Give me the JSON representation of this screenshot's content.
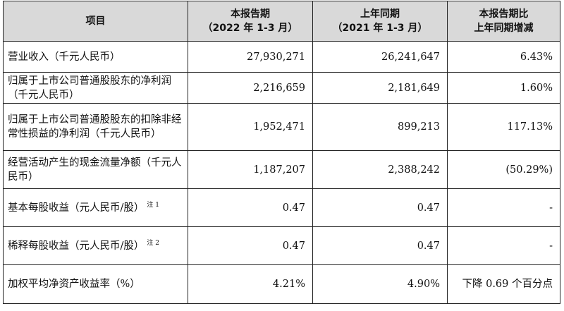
{
  "table": {
    "headers": [
      {
        "line1": "项目",
        "line2": ""
      },
      {
        "line1": "本报告期",
        "line2": "（2022 年 1-3 月）"
      },
      {
        "line1": "上年同期",
        "line2": "（2021 年 1-3 月）"
      },
      {
        "line1": "本报告期比",
        "line2": "上年同期增减"
      }
    ],
    "rows": [
      {
        "label": "营业收入（千元人民币）",
        "note": "",
        "current": "27,930,271",
        "prior": "26,241,647",
        "change": "6.43%"
      },
      {
        "label": "归属于上市公司普通股股东的净利润（千元人民币）",
        "note": "",
        "current": "2,216,659",
        "prior": "2,181,649",
        "change": "1.60%"
      },
      {
        "label": "归属于上市公司普通股股东的扣除非经常性损益的净利润（千元人民币）",
        "note": "",
        "current": "1,952,471",
        "prior": "899,213",
        "change": "117.13%"
      },
      {
        "label": "经营活动产生的现金流量净额（千元人民币）",
        "note": "",
        "current": "1,187,207",
        "prior": "2,388,242",
        "change": "(50.29%)"
      },
      {
        "label": "基本每股收益（元人民币/股）",
        "note": "注 1",
        "current": "0.47",
        "prior": "0.47",
        "change": "-"
      },
      {
        "label": "稀释每股收益（元人民币/股）",
        "note": "注 2",
        "current": "0.47",
        "prior": "0.47",
        "change": "-"
      },
      {
        "label": "加权平均净资产收益率（%）",
        "note": "",
        "current": "4.21%",
        "prior": "4.90%",
        "change": "下降 0.69 个百分点"
      }
    ]
  }
}
